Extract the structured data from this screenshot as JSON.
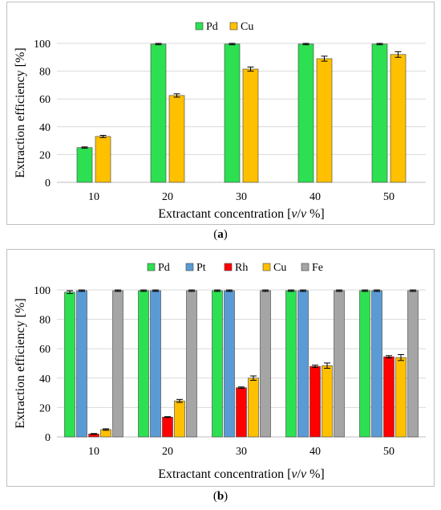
{
  "chart_data": [
    {
      "type": "bar",
      "panel": "a",
      "categories": [
        "10",
        "20",
        "30",
        "40",
        "50"
      ],
      "series": [
        {
          "name": "Pd",
          "color": "#2de052",
          "values": [
            25,
            99.5,
            99.5,
            99.5,
            99.5
          ],
          "errors": [
            0.5,
            0.5,
            0.5,
            0.5,
            0.5
          ]
        },
        {
          "name": "Cu",
          "color": "#ffc000",
          "values": [
            33,
            62.5,
            81.5,
            89,
            92
          ],
          "errors": [
            0.8,
            1.2,
            1.5,
            1.8,
            2.0
          ]
        }
      ],
      "xlabel_prefix": "Extractant concentration [",
      "xlabel_italic": "v",
      "xlabel_mid": "/",
      "xlabel_italic2": "v",
      "xlabel_suffix": " %]",
      "ylabel": "Extraction efficiency [%]",
      "ylim": [
        0,
        100
      ],
      "yticks": [
        "0",
        "20",
        "40",
        "60",
        "80",
        "100"
      ],
      "grid": true,
      "legend_position": "top"
    },
    {
      "type": "bar",
      "panel": "b",
      "categories": [
        "10",
        "20",
        "30",
        "40",
        "50"
      ],
      "series": [
        {
          "name": "Pd",
          "color": "#2de052",
          "values": [
            98.5,
            99.5,
            99.5,
            99.5,
            99.5
          ],
          "errors": [
            1.0,
            0.5,
            0.5,
            0.5,
            0.5
          ]
        },
        {
          "name": "Pt",
          "color": "#5b9bd5",
          "values": [
            99.5,
            99.5,
            99.5,
            99.5,
            99.5
          ],
          "errors": [
            0.5,
            0.5,
            0.5,
            0.5,
            0.5
          ]
        },
        {
          "name": "Rh",
          "color": "#ff0000",
          "values": [
            2,
            13.5,
            33.5,
            48,
            54.5
          ],
          "errors": [
            0.3,
            0.3,
            0.5,
            0.8,
            0.8
          ]
        },
        {
          "name": "Cu",
          "color": "#ffc000",
          "values": [
            5,
            24.5,
            40,
            48.5,
            54
          ],
          "errors": [
            0.5,
            1.0,
            1.5,
            1.8,
            2.0
          ]
        },
        {
          "name": "Fe",
          "color": "#a5a5a5",
          "values": [
            99.5,
            99.5,
            99.5,
            99.5,
            99.5
          ],
          "errors": [
            0.5,
            0.5,
            0.5,
            0.5,
            0.5
          ]
        }
      ],
      "xlabel_prefix": "Extractant concentration [",
      "xlabel_italic": "v",
      "xlabel_mid": "/",
      "xlabel_italic2": "v",
      "xlabel_suffix": " %]",
      "ylabel": "Extraction efficiency [%]",
      "ylim": [
        0,
        100
      ],
      "yticks": [
        "0",
        "20",
        "40",
        "60",
        "80",
        "100"
      ],
      "grid": true,
      "legend_position": "top"
    }
  ],
  "captions": {
    "a": "a",
    "b": "b"
  }
}
